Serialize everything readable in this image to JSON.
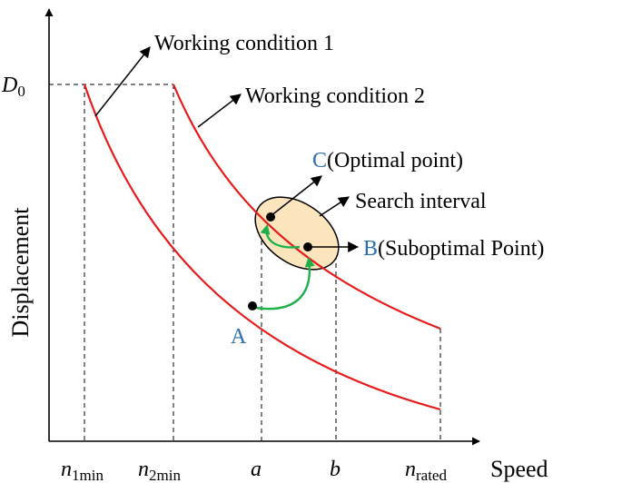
{
  "axes": {
    "y_label": "Displacement",
    "x_label": "Speed",
    "y_tick": {
      "main": "D",
      "sub": "0"
    }
  },
  "x_ticks": [
    {
      "id": "n1min",
      "main": "n",
      "sub": "1min",
      "italic": true
    },
    {
      "id": "n2min",
      "main": "n",
      "sub": "2min",
      "italic": true
    },
    {
      "id": "a",
      "main": "a",
      "sub": "",
      "italic": true
    },
    {
      "id": "b",
      "main": "b",
      "sub": "",
      "italic": true
    },
    {
      "id": "nrated",
      "main": "n",
      "sub": "rated",
      "italic": true
    }
  ],
  "curves": [
    {
      "id": "working-condition-1",
      "label": "Working condition 1"
    },
    {
      "id": "working-condition-2",
      "label": "Working condition 2"
    }
  ],
  "annotations": {
    "search_interval": "Search interval",
    "point_c": {
      "letter": "C",
      "text": "(Optimal point)"
    },
    "point_b": {
      "letter": "B",
      "text": "(Suboptimal Point)"
    },
    "point_a": {
      "letter": "A"
    }
  },
  "colors": {
    "curve": "#e8191b",
    "axis": "#000000",
    "point_letter": "#2b6fad",
    "search_fill": "#fce5bd",
    "transition_arrow": "#1eb04a"
  }
}
